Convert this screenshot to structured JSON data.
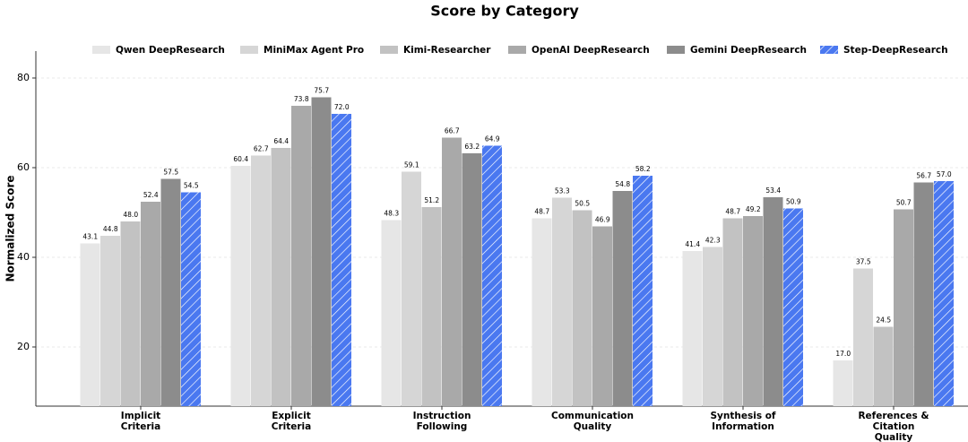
{
  "chart_data": {
    "type": "bar",
    "title": "Score by Category",
    "y_label": "Normalized Score",
    "categories": [
      "Implicit\nCriteria",
      "Explicit\nCriteria",
      "Instruction\nFollowing",
      "Communication\nQuality",
      "Synthesis of\nInformation",
      "References &\nCitation\nQuality"
    ],
    "series": [
      {
        "name": "Qwen DeepResearch",
        "color": "#e6e6e6",
        "values": [
          43.1,
          60.4,
          48.3,
          48.7,
          41.4,
          17.0
        ],
        "value_labels": [
          "43.1",
          "60.4",
          "48.3",
          "48.7",
          "41.4",
          "17.0"
        ]
      },
      {
        "name": "MiniMax Agent Pro",
        "color": "#d6d6d6",
        "values": [
          44.8,
          62.7,
          59.1,
          53.3,
          42.3,
          37.5
        ],
        "value_labels": [
          "44.8",
          "62.7",
          "59.1",
          "53.3",
          "42.3",
          "37.5"
        ]
      },
      {
        "name": "Kimi-Researcher",
        "color": "#c2c2c2",
        "values": [
          48.0,
          64.4,
          51.2,
          50.5,
          48.7,
          24.5
        ],
        "value_labels": [
          "48.0",
          "64.4",
          "51.2",
          "50.5",
          "48.7",
          "24.5"
        ]
      },
      {
        "name": "OpenAI DeepResearch",
        "color": "#a9a9a9",
        "values": [
          52.4,
          73.8,
          66.7,
          46.9,
          49.2,
          50.7
        ],
        "value_labels": [
          "52.4",
          "73.8",
          "66.7",
          "46.9",
          "49.2",
          "50.7"
        ]
      },
      {
        "name": "Gemini DeepResearch",
        "color": "#8c8c8c",
        "values": [
          57.5,
          75.7,
          63.2,
          54.8,
          53.4,
          56.7
        ],
        "value_labels": [
          "57.5",
          "75.7",
          "63.2",
          "54.8",
          "53.4",
          "56.7"
        ]
      },
      {
        "name": "Step-DeepResearch",
        "color": "#4a78f0",
        "hatch": true,
        "values": [
          54.5,
          72.0,
          64.9,
          58.2,
          50.9,
          57.0
        ],
        "value_labels": [
          "54.5",
          "72.0",
          "64.9",
          "58.2",
          "50.9",
          "57.0"
        ]
      }
    ],
    "ylim": [
      6.8,
      86
    ],
    "yticks": [
      20,
      40,
      60,
      80
    ],
    "grid": true
  }
}
